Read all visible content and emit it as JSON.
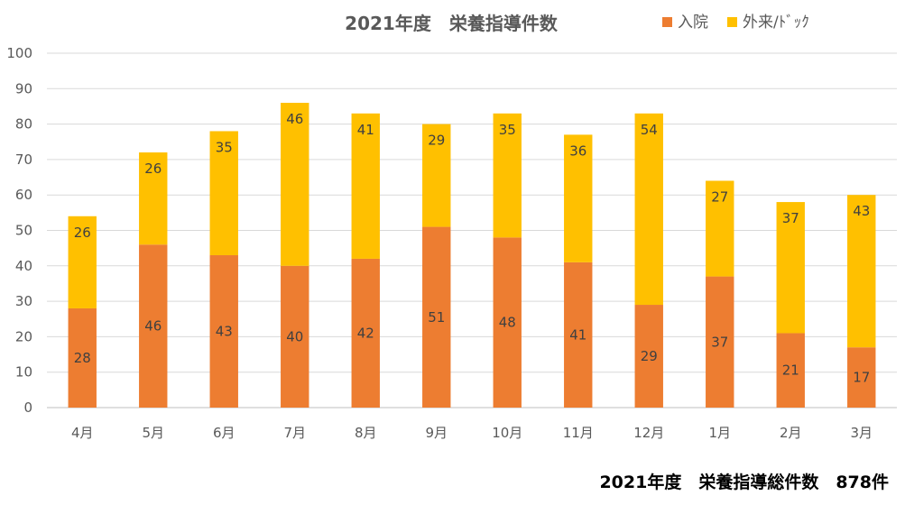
{
  "chart_data": {
    "type": "bar",
    "stacked": true,
    "title": "2021年度　栄養指導件数",
    "categories": [
      "4月",
      "5月",
      "6月",
      "7月",
      "8月",
      "9月",
      "10月",
      "11月",
      "12月",
      "1月",
      "2月",
      "3月"
    ],
    "series": [
      {
        "name": "入院",
        "color": "#ED7D31",
        "values": [
          28,
          46,
          43,
          40,
          42,
          51,
          48,
          41,
          29,
          37,
          21,
          17
        ]
      },
      {
        "name": "外来/ﾄﾞｯｸ",
        "color": "#FFC000",
        "values": [
          26,
          26,
          35,
          46,
          41,
          29,
          35,
          36,
          54,
          27,
          37,
          43
        ]
      }
    ],
    "ylim": [
      0,
      100
    ],
    "yticks": [
      0,
      10,
      20,
      30,
      40,
      50,
      60,
      70,
      80,
      90,
      100
    ],
    "grid": true,
    "legend_position": "top-right",
    "xlabel": "",
    "ylabel": ""
  },
  "footer": {
    "text": "2021年度　栄養指導総件数　878件"
  }
}
